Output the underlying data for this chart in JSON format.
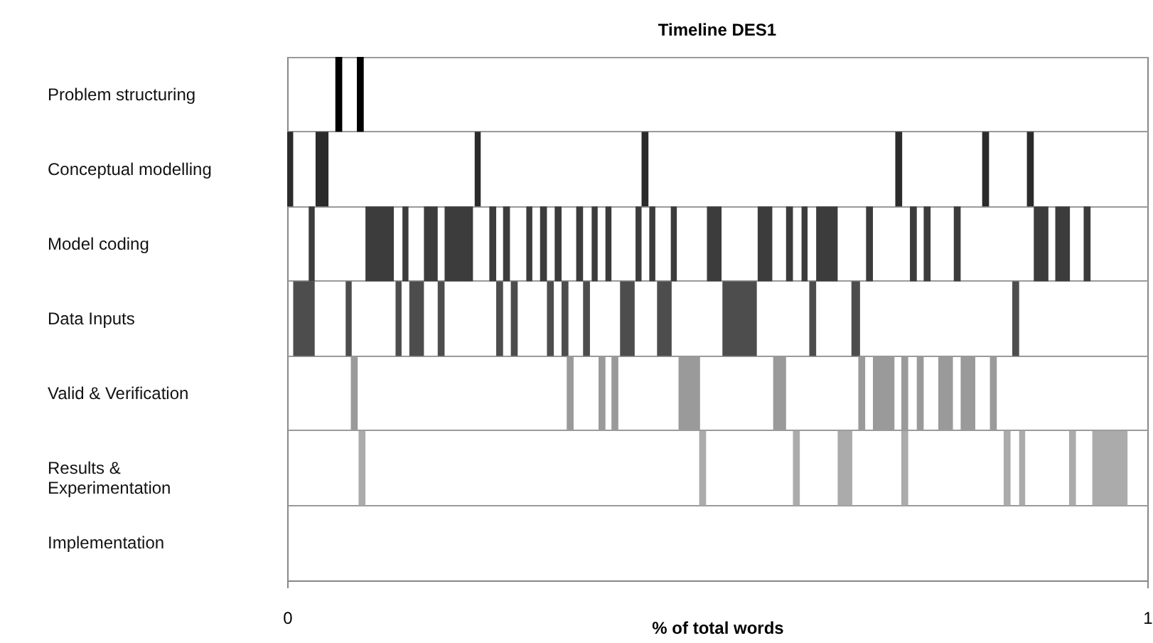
{
  "chart_data": {
    "type": "bar",
    "orientation": "horizontal",
    "title": "Timeline DES1",
    "xlabel": "% of total words",
    "categories": [
      "Problem structuring",
      "Conceptual modelling",
      "Model coding",
      "Data Inputs",
      "Valid & Verification",
      "Results & Experimentation",
      "Implementation"
    ],
    "xlim": [
      0,
      1
    ],
    "xticks": [
      {
        "value": 0,
        "label": "0"
      },
      {
        "value": 1,
        "label": "1"
      }
    ],
    "grid": "y",
    "series": [
      {
        "colors": [
          "#000000",
          "#2b2b2b",
          "#3c3c3c",
          "#4d4d4d",
          "#9a9a9a",
          "#ababab",
          null
        ],
        "base": [
          0.056,
          0,
          0.025,
          0.007,
          0.074,
          0.083,
          null
        ],
        "values": [
          0.008,
          0.007,
          0.007,
          0.025,
          0.008,
          0.008,
          null
        ]
      },
      {
        "colors": [
          "#000000",
          "#2b2b2b",
          "#3c3c3c",
          "#4d4d4d",
          "#9a9a9a",
          "#ababab",
          null
        ],
        "base": [
          0.081,
          0.033,
          0.091,
          0.068,
          0.325,
          0.479,
          null
        ],
        "values": [
          0.008,
          0.015,
          0.033,
          0.007,
          0.008,
          0.008,
          null
        ]
      },
      {
        "colors": [
          null,
          "#2b2b2b",
          "#3c3c3c",
          "#4d4d4d",
          "#9a9a9a",
          "#ababab",
          null
        ],
        "base": [
          null,
          0.218,
          0.134,
          0.126,
          0.362,
          0.588,
          null
        ],
        "values": [
          null,
          0.007,
          0.007,
          0.007,
          0.008,
          0.008,
          null
        ]
      },
      {
        "colors": [
          null,
          "#2b2b2b",
          "#3c3c3c",
          "#4d4d4d",
          "#9a9a9a",
          "#ababab",
          null
        ],
        "base": [
          null,
          0.412,
          0.159,
          0.142,
          0.377,
          0.64,
          null
        ],
        "values": [
          null,
          0.008,
          0.016,
          0.017,
          0.008,
          0.017,
          null
        ]
      },
      {
        "colors": [
          null,
          "#2b2b2b",
          "#3c3c3c",
          "#4d4d4d",
          "#9a9a9a",
          "#ababab",
          null
        ],
        "base": [
          null,
          0.707,
          0.183,
          0.175,
          0.455,
          0.714,
          null
        ],
        "values": [
          null,
          0.008,
          0.033,
          0.008,
          0.025,
          0.008,
          null
        ]
      },
      {
        "colors": [
          null,
          "#2b2b2b",
          "#3c3c3c",
          "#4d4d4d",
          "#9a9a9a",
          "#ababab",
          null
        ],
        "base": [
          null,
          0.808,
          0.235,
          0.243,
          0.565,
          0.833,
          null
        ],
        "values": [
          null,
          0.008,
          0.008,
          0.008,
          0.015,
          0.008,
          null
        ]
      },
      {
        "colors": [
          null,
          "#2b2b2b",
          "#3c3c3c",
          "#4d4d4d",
          "#9a9a9a",
          "#ababab",
          null
        ],
        "base": [
          null,
          0.86,
          0.251,
          0.26,
          0.664,
          0.851,
          null
        ],
        "values": [
          null,
          0.008,
          0.008,
          0.008,
          0.008,
          0.007,
          null
        ]
      },
      {
        "colors": [
          null,
          null,
          "#3c3c3c",
          "#4d4d4d",
          "#9a9a9a",
          "#ababab",
          null
        ],
        "base": [
          null,
          null,
          0.278,
          0.302,
          0.681,
          0.909,
          null
        ],
        "values": [
          null,
          null,
          0.007,
          0.008,
          0.025,
          0.008,
          null
        ]
      },
      {
        "colors": [
          null,
          null,
          "#3c3c3c",
          "#4d4d4d",
          "#9a9a9a",
          "#ababab",
          null
        ],
        "base": [
          null,
          null,
          0.294,
          0.319,
          0.714,
          0.936,
          null
        ],
        "values": [
          null,
          null,
          0.008,
          0.008,
          0.008,
          0.041,
          null
        ]
      },
      {
        "colors": [
          null,
          null,
          "#3c3c3c",
          "#4d4d4d",
          "#9a9a9a",
          null,
          null
        ],
        "base": [
          null,
          null,
          0.311,
          0.344,
          0.732,
          null,
          null
        ],
        "values": [
          null,
          null,
          0.008,
          0.008,
          0.008,
          null,
          null
        ]
      },
      {
        "colors": [
          null,
          null,
          "#3c3c3c",
          "#4d4d4d",
          "#9a9a9a",
          null,
          null
        ],
        "base": [
          null,
          null,
          0.336,
          0.387,
          0.757,
          null,
          null
        ],
        "values": [
          null,
          null,
          0.008,
          0.017,
          0.017,
          null,
          null
        ]
      },
      {
        "colors": [
          null,
          null,
          "#3c3c3c",
          "#4d4d4d",
          "#9a9a9a",
          null,
          null
        ],
        "base": [
          null,
          null,
          0.354,
          0.43,
          0.783,
          null,
          null
        ],
        "values": [
          null,
          null,
          0.007,
          0.017,
          0.017,
          null,
          null
        ]
      },
      {
        "colors": [
          null,
          null,
          "#3c3c3c",
          "#4d4d4d",
          "#9a9a9a",
          null,
          null
        ],
        "base": [
          null,
          null,
          0.37,
          0.506,
          0.817,
          null,
          null
        ],
        "values": [
          null,
          null,
          0.007,
          0.04,
          0.008,
          null,
          null
        ]
      },
      {
        "colors": [
          null,
          null,
          "#3c3c3c",
          "#4d4d4d",
          null,
          null,
          null
        ],
        "base": [
          null,
          null,
          0.405,
          0.607,
          null,
          null,
          null
        ],
        "values": [
          null,
          null,
          0.007,
          0.008,
          null,
          null,
          null
        ]
      },
      {
        "colors": [
          null,
          null,
          "#3c3c3c",
          "#4d4d4d",
          null,
          null,
          null
        ],
        "base": [
          null,
          null,
          0.421,
          0.656,
          null,
          null,
          null
        ],
        "values": [
          null,
          null,
          0.007,
          0.01,
          null,
          null,
          null
        ]
      },
      {
        "colors": [
          null,
          null,
          "#3c3c3c",
          "#4d4d4d",
          null,
          null,
          null
        ],
        "base": [
          null,
          null,
          0.446,
          0.843,
          null,
          null,
          null
        ],
        "values": [
          null,
          null,
          0.007,
          0.008,
          null,
          null,
          null
        ]
      },
      {
        "colors": [
          null,
          null,
          "#3c3c3c",
          null,
          null,
          null,
          null
        ],
        "base": [
          null,
          null,
          0.488,
          null,
          null,
          null,
          null
        ],
        "values": [
          null,
          null,
          0.017,
          null,
          null,
          null,
          null
        ]
      },
      {
        "colors": [
          null,
          null,
          "#3c3c3c",
          null,
          null,
          null,
          null
        ],
        "base": [
          null,
          null,
          0.547,
          null,
          null,
          null,
          null
        ],
        "values": [
          null,
          null,
          0.017,
          null,
          null,
          null,
          null
        ]
      },
      {
        "colors": [
          null,
          null,
          "#3c3c3c",
          null,
          null,
          null,
          null
        ],
        "base": [
          null,
          null,
          0.58,
          null,
          null,
          null,
          null
        ],
        "values": [
          null,
          null,
          0.008,
          null,
          null,
          null,
          null
        ]
      },
      {
        "colors": [
          null,
          null,
          "#3c3c3c",
          null,
          null,
          null,
          null
        ],
        "base": [
          null,
          null,
          0.598,
          null,
          null,
          null,
          null
        ],
        "values": [
          null,
          null,
          0.007,
          null,
          null,
          null,
          null
        ]
      },
      {
        "colors": [
          null,
          null,
          "#3c3c3c",
          null,
          null,
          null,
          null
        ],
        "base": [
          null,
          null,
          0.615,
          null,
          null,
          null,
          null
        ],
        "values": [
          null,
          null,
          0.025,
          null,
          null,
          null,
          null
        ]
      },
      {
        "colors": [
          null,
          null,
          "#3c3c3c",
          null,
          null,
          null,
          null
        ],
        "base": [
          null,
          null,
          0.673,
          null,
          null,
          null,
          null
        ],
        "values": [
          null,
          null,
          0.008,
          null,
          null,
          null,
          null
        ]
      },
      {
        "colors": [
          null,
          null,
          "#3c3c3c",
          null,
          null,
          null,
          null
        ],
        "base": [
          null,
          null,
          0.724,
          null,
          null,
          null,
          null
        ],
        "values": [
          null,
          null,
          0.008,
          null,
          null,
          null,
          null
        ]
      },
      {
        "colors": [
          null,
          null,
          "#3c3c3c",
          null,
          null,
          null,
          null
        ],
        "base": [
          null,
          null,
          0.74,
          null,
          null,
          null,
          null
        ],
        "values": [
          null,
          null,
          0.008,
          null,
          null,
          null,
          null
        ]
      },
      {
        "colors": [
          null,
          null,
          "#3c3c3c",
          null,
          null,
          null,
          null
        ],
        "base": [
          null,
          null,
          0.775,
          null,
          null,
          null,
          null
        ],
        "values": [
          null,
          null,
          0.008,
          null,
          null,
          null,
          null
        ]
      },
      {
        "colors": [
          null,
          null,
          "#3c3c3c",
          null,
          null,
          null,
          null
        ],
        "base": [
          null,
          null,
          0.868,
          null,
          null,
          null,
          null
        ],
        "values": [
          null,
          null,
          0.017,
          null,
          null,
          null,
          null
        ]
      },
      {
        "colors": [
          null,
          null,
          "#3c3c3c",
          null,
          null,
          null,
          null
        ],
        "base": [
          null,
          null,
          0.893,
          null,
          null,
          null,
          null
        ],
        "values": [
          null,
          null,
          0.017,
          null,
          null,
          null,
          null
        ]
      },
      {
        "colors": [
          null,
          null,
          "#3c3c3c",
          null,
          null,
          null,
          null
        ],
        "base": [
          null,
          null,
          0.926,
          null,
          null,
          null,
          null
        ],
        "values": [
          null,
          null,
          0.008,
          null,
          null,
          null,
          null
        ]
      }
    ]
  }
}
